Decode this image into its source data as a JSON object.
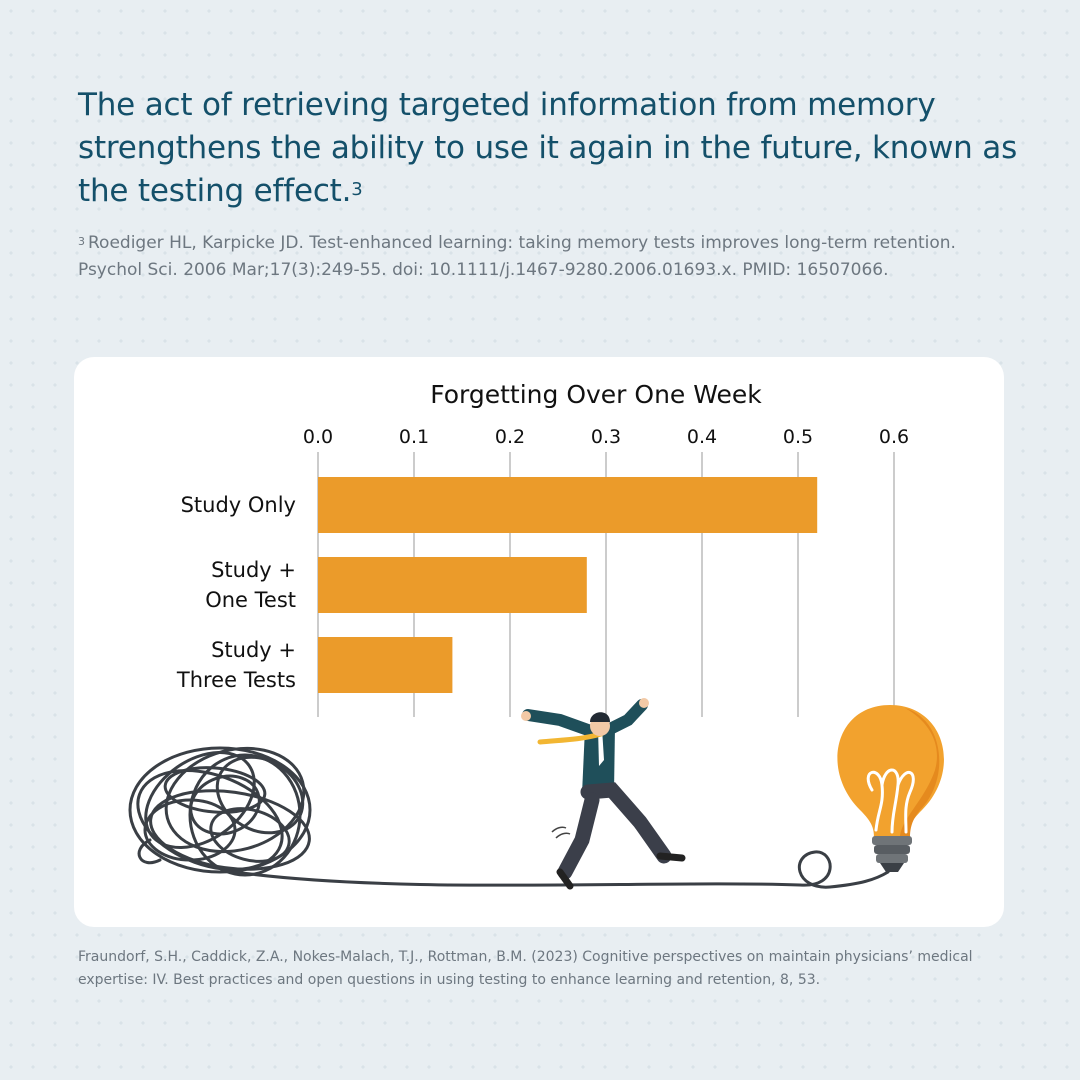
{
  "headline": {
    "text": "The act of retrieving targeted information from memory strengthens the ability to use it again in the future, known as the testing effect.",
    "sup": "3"
  },
  "footnote": {
    "marker": "3",
    "text": "Roediger HL, Karpicke JD. Test-enhanced learning: taking memory tests improves long-term retention. Psychol Sci. 2006 Mar;17(3):249-55. doi: 10.1111/j.1467-9280.2006.01693.x. PMID: 16507066."
  },
  "source": "Fraundorf, S.H., Caddick, Z.A., Nokes-Malach, T.J., Rottman, B.M. (2023) Cognitive perspectives on maintain physicians’ medical expertise: IV. Best practices and open questions in using testing to enhance learning and retention, 8, 53.",
  "colors": {
    "headline": "#14506a",
    "bar": "#eb9b2a",
    "background": "#e8eef2"
  },
  "illustration": {
    "icons": [
      "tangled-yarn-icon",
      "running-businessman-icon",
      "light-bulb-icon"
    ]
  },
  "chart_data": {
    "type": "bar",
    "orientation": "horizontal",
    "title": "Forgetting Over One Week",
    "xlabel": "",
    "ylabel": "",
    "xlim": [
      0,
      0.6
    ],
    "xticks": [
      0.0,
      0.1,
      0.2,
      0.3,
      0.4,
      0.5,
      0.6
    ],
    "xtick_labels": [
      "0.0",
      "0.1",
      "0.2",
      "0.3",
      "0.4",
      "0.5",
      "0.6"
    ],
    "axis_position": "top",
    "grid": true,
    "categories": [
      [
        "Study Only"
      ],
      [
        "Study +",
        "One Test"
      ],
      [
        "Study +",
        "Three Tests"
      ]
    ],
    "values": [
      0.52,
      0.28,
      0.14
    ]
  }
}
